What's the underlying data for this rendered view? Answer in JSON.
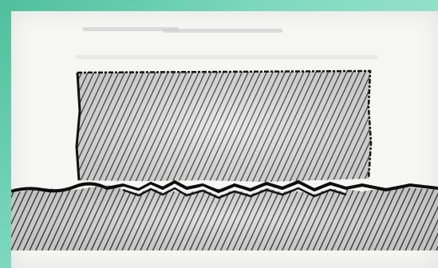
{
  "figure": {
    "description_icon": "hatched-block-on-substrate-diagram",
    "colors": {
      "frame": "#4fbf9c",
      "paper": "#f6f6f4",
      "hatch": "#3a3a3a",
      "outline": "#111111"
    }
  }
}
